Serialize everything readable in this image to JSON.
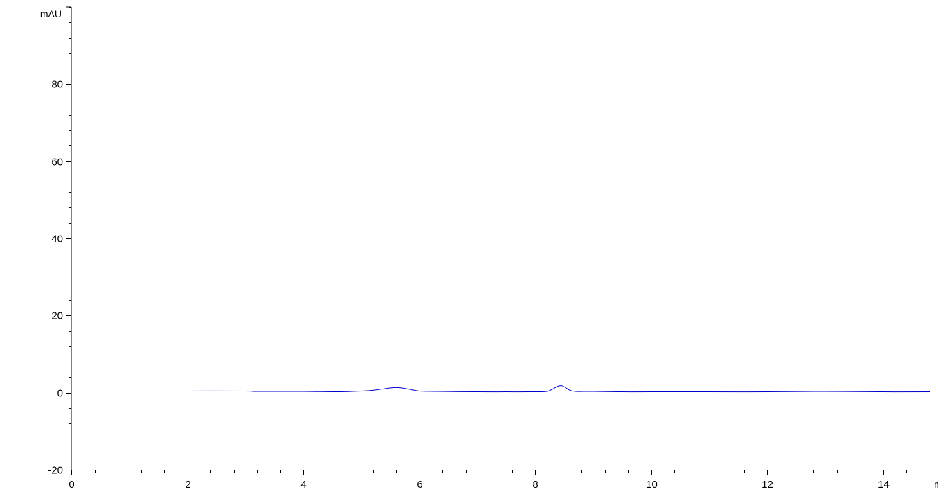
{
  "chart_data": {
    "type": "line",
    "title": "",
    "xlabel": "m",
    "ylabel": "mAU",
    "xlim": [
      0,
      14.8
    ],
    "ylim": [
      -20,
      100
    ],
    "xticks": [
      0,
      2,
      4,
      6,
      8,
      10,
      12,
      14
    ],
    "xtick_labels": [
      "0",
      "2",
      "4",
      "6",
      "8",
      "10",
      "12",
      "14"
    ],
    "x_minor_step": 0.4,
    "yticks": [
      -20,
      0,
      20,
      40,
      60,
      80
    ],
    "ytick_labels": [
      "-20",
      "0",
      "20",
      "40",
      "60",
      "80"
    ],
    "y_minor_step": 4,
    "grid": false,
    "series": [
      {
        "color": "#0000cc",
        "x": [
          0,
          1,
          2,
          3,
          3.2,
          4,
          4.6,
          5,
          5.2,
          5.35,
          5.5,
          5.6,
          5.7,
          5.85,
          6.0,
          6.3,
          7,
          7.5,
          8.0,
          8.2,
          8.3,
          8.38,
          8.45,
          8.5,
          8.6,
          8.7,
          9.0,
          9.5,
          10,
          11,
          12,
          13,
          14,
          14.8
        ],
        "y": [
          0.4,
          0.4,
          0.4,
          0.4,
          0.3,
          0.3,
          0.2,
          0.4,
          0.6,
          0.9,
          1.2,
          1.3,
          1.2,
          0.8,
          0.4,
          0.3,
          0.2,
          0.2,
          0.2,
          0.3,
          0.9,
          1.6,
          1.8,
          1.5,
          0.6,
          0.3,
          0.3,
          0.2,
          0.2,
          0.2,
          0.2,
          0.3,
          0.2,
          0.2
        ]
      }
    ]
  }
}
